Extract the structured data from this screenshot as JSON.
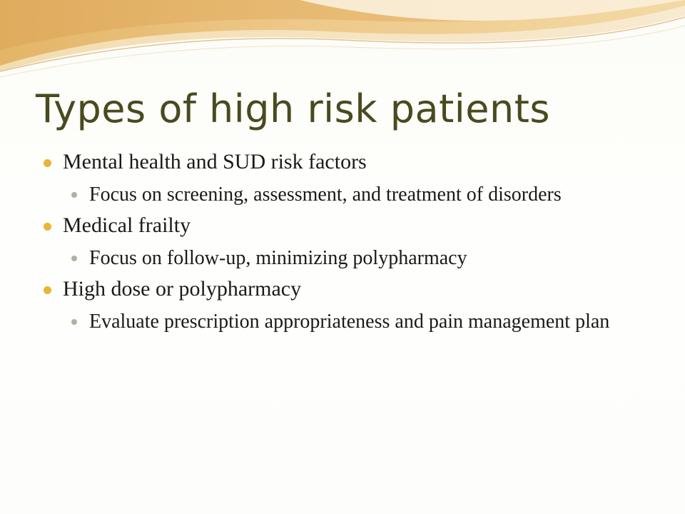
{
  "slide": {
    "title": "Types of high risk patients",
    "bullets": [
      {
        "text": "Mental health and SUD risk factors",
        "sub": [
          "Focus on screening, assessment, and treatment of disorders"
        ]
      },
      {
        "text": "Medical frailty",
        "sub": [
          "Focus on follow-up, minimizing polypharmacy"
        ]
      },
      {
        "text": "High dose or polypharmacy",
        "sub": [
          "Evaluate prescription appropriateness and pain management plan"
        ]
      }
    ]
  },
  "colors": {
    "title": "#4a4a1f",
    "bullet_primary": "#e8b534",
    "bullet_secondary": "#a9b3a2",
    "banner_gold": "#e9c47a",
    "banner_cream": "#f6e3b4"
  }
}
